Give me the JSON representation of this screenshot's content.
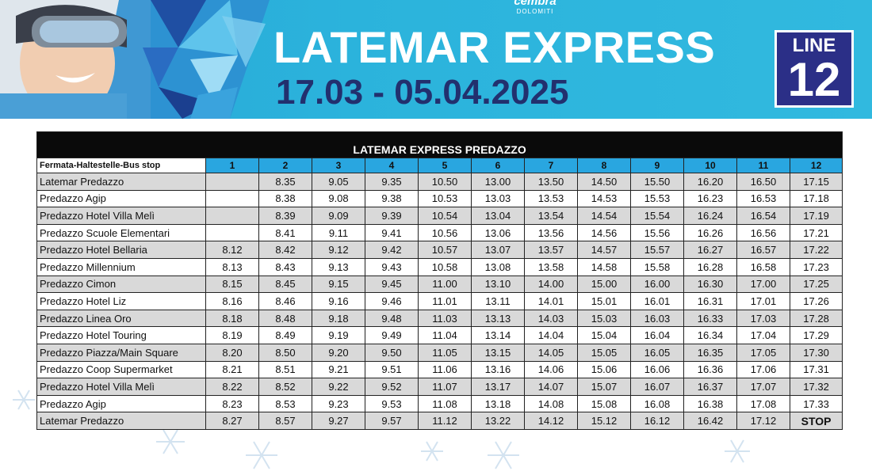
{
  "header": {
    "brand_line1": "cembra",
    "brand_line2": "DOLOMITI",
    "title": "LATEMAR EXPRESS",
    "dates": "17.03 - 05.04.2025",
    "line_label": "LINE",
    "line_number": "12"
  },
  "colors": {
    "banner": "#2bb3dc",
    "dates": "#22306e",
    "line_box": "#2b2f87",
    "table_head": "#29a6e0"
  },
  "timetable": {
    "caption": "LATEMAR EXPRESS PREDAZZO",
    "stop_header": "Fermata-Haltestelle-Bus stop",
    "runs": [
      "1",
      "2",
      "3",
      "4",
      "5",
      "6",
      "7",
      "8",
      "9",
      "10",
      "11",
      "12"
    ],
    "rows": [
      {
        "stop": "Latemar Predazzo",
        "times": [
          "",
          "8.35",
          "9.05",
          "9.35",
          "10.50",
          "13.00",
          "13.50",
          "14.50",
          "15.50",
          "16.20",
          "16.50",
          "17.15"
        ]
      },
      {
        "stop": "Predazzo Agip",
        "times": [
          "",
          "8.38",
          "9.08",
          "9.38",
          "10.53",
          "13.03",
          "13.53",
          "14.53",
          "15.53",
          "16.23",
          "16.53",
          "17.18"
        ]
      },
      {
        "stop": "Predazzo Hotel Villa Melì",
        "times": [
          "",
          "8.39",
          "9.09",
          "9.39",
          "10.54",
          "13.04",
          "13.54",
          "14.54",
          "15.54",
          "16.24",
          "16.54",
          "17.19"
        ]
      },
      {
        "stop": "Predazzo Scuole Elementari",
        "times": [
          "",
          "8.41",
          "9.11",
          "9.41",
          "10.56",
          "13.06",
          "13.56",
          "14.56",
          "15.56",
          "16.26",
          "16.56",
          "17.21"
        ]
      },
      {
        "stop": "Predazzo Hotel Bellaria",
        "times": [
          "8.12",
          "8.42",
          "9.12",
          "9.42",
          "10.57",
          "13.07",
          "13.57",
          "14.57",
          "15.57",
          "16.27",
          "16.57",
          "17.22"
        ]
      },
      {
        "stop": "Predazzo Millennium",
        "times": [
          "8.13",
          "8.43",
          "9.13",
          "9.43",
          "10.58",
          "13.08",
          "13.58",
          "14.58",
          "15.58",
          "16.28",
          "16.58",
          "17.23"
        ]
      },
      {
        "stop": "Predazzo Cimon",
        "times": [
          "8.15",
          "8.45",
          "9.15",
          "9.45",
          "11.00",
          "13.10",
          "14.00",
          "15.00",
          "16.00",
          "16.30",
          "17.00",
          "17.25"
        ]
      },
      {
        "stop": "Predazzo Hotel Liz",
        "times": [
          "8.16",
          "8.46",
          "9.16",
          "9.46",
          "11.01",
          "13.11",
          "14.01",
          "15.01",
          "16.01",
          "16.31",
          "17.01",
          "17.26"
        ]
      },
      {
        "stop": "Predazzo Linea Oro",
        "times": [
          "8.18",
          "8.48",
          "9.18",
          "9.48",
          "11.03",
          "13.13",
          "14.03",
          "15.03",
          "16.03",
          "16.33",
          "17.03",
          "17.28"
        ]
      },
      {
        "stop": "Predazzo Hotel Touring",
        "times": [
          "8.19",
          "8.49",
          "9.19",
          "9.49",
          "11.04",
          "13.14",
          "14.04",
          "15.04",
          "16.04",
          "16.34",
          "17.04",
          "17.29"
        ]
      },
      {
        "stop": "Predazzo Piazza/Main Square",
        "times": [
          "8.20",
          "8.50",
          "9.20",
          "9.50",
          "11.05",
          "13.15",
          "14.05",
          "15.05",
          "16.05",
          "16.35",
          "17.05",
          "17.30"
        ]
      },
      {
        "stop": "Predazzo Coop Supermarket",
        "times": [
          "8.21",
          "8.51",
          "9.21",
          "9.51",
          "11.06",
          "13.16",
          "14.06",
          "15.06",
          "16.06",
          "16.36",
          "17.06",
          "17.31"
        ]
      },
      {
        "stop": "Predazzo Hotel Villa Melì",
        "times": [
          "8.22",
          "8.52",
          "9.22",
          "9.52",
          "11.07",
          "13.17",
          "14.07",
          "15.07",
          "16.07",
          "16.37",
          "17.07",
          "17.32"
        ]
      },
      {
        "stop": "Predazzo Agip",
        "times": [
          "8.23",
          "8.53",
          "9.23",
          "9.53",
          "11.08",
          "13.18",
          "14.08",
          "15.08",
          "16.08",
          "16.38",
          "17.08",
          "17.33"
        ]
      },
      {
        "stop": "Latemar Predazzo",
        "times": [
          "8.27",
          "8.57",
          "9.27",
          "9.57",
          "11.12",
          "13.22",
          "14.12",
          "15.12",
          "16.12",
          "16.42",
          "17.12",
          "STOP"
        ]
      }
    ]
  }
}
